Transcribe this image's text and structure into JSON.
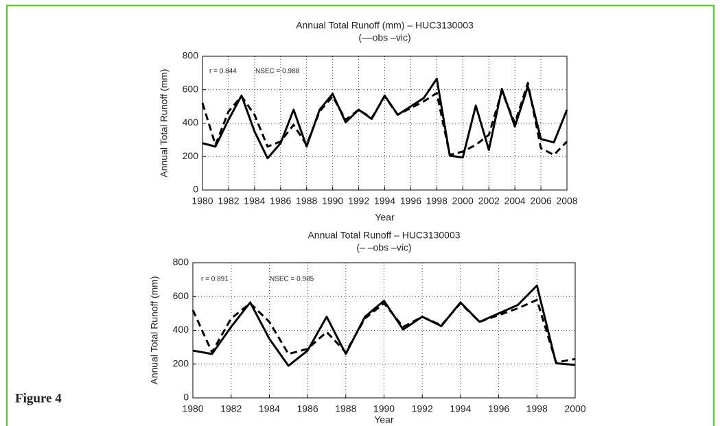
{
  "figure_label": "Figure 4",
  "chart_data": [
    {
      "type": "line",
      "title": "Annual Total Runoff (mm) – HUC3130003",
      "subtitle": "(––obs  –vic)",
      "x_label": "Year",
      "y_label": "Annual Total Runoff (mm)",
      "annotations": [
        "r = 0.844",
        "NSEC = 0.988"
      ],
      "x": [
        1980,
        1981,
        1982,
        1983,
        1984,
        1985,
        1986,
        1987,
        1988,
        1989,
        1990,
        1991,
        1992,
        1993,
        1994,
        1995,
        1996,
        1997,
        1998,
        1999,
        2000,
        2001,
        2002,
        2003,
        2004,
        2005,
        2006,
        2007,
        2008
      ],
      "series": [
        {
          "color": "#000000",
          "dash": true,
          "values": [
            520,
            270,
            470,
            560,
            450,
            260,
            290,
            390,
            270,
            470,
            560,
            420,
            480,
            430,
            560,
            450,
            490,
            530,
            580,
            210,
            230,
            270,
            330,
            590,
            400,
            640,
            250,
            210,
            290
          ]
        },
        {
          "color": "#000000",
          "dash": false,
          "values": [
            280,
            260,
            420,
            565,
            350,
            190,
            280,
            480,
            260,
            480,
            575,
            405,
            480,
            425,
            565,
            450,
            500,
            550,
            665,
            205,
            195,
            505,
            240,
            605,
            380,
            620,
            305,
            285,
            480
          ]
        }
      ],
      "xlim": [
        1980,
        2008
      ],
      "xticks": [
        1980,
        1982,
        1984,
        1986,
        1988,
        1990,
        1992,
        1994,
        1996,
        1998,
        2000,
        2002,
        2004,
        2006,
        2008
      ],
      "ylim": [
        0,
        800
      ],
      "yticks": [
        0,
        200,
        400,
        600,
        800
      ],
      "grid": true
    },
    {
      "type": "line",
      "title": "Annual Total Runoff – HUC3130003",
      "subtitle": "(– –obs  –vic)",
      "x_label": "Year",
      "y_label": "Annual Total Runoff (mm)",
      "annotations": [
        "r = 0.891",
        "NSEC = 0.985"
      ],
      "x": [
        1980,
        1981,
        1982,
        1983,
        1984,
        1985,
        1986,
        1987,
        1988,
        1989,
        1990,
        1991,
        1992,
        1993,
        1994,
        1995,
        1996,
        1997,
        1998,
        1999,
        2000
      ],
      "series": [
        {
          "color": "#000000",
          "dash": true,
          "values": [
            520,
            270,
            470,
            560,
            450,
            260,
            290,
            390,
            270,
            470,
            560,
            420,
            480,
            430,
            560,
            450,
            490,
            530,
            580,
            210,
            230
          ]
        },
        {
          "color": "#000000",
          "dash": false,
          "values": [
            280,
            260,
            420,
            565,
            350,
            190,
            280,
            480,
            260,
            480,
            575,
            405,
            480,
            425,
            565,
            450,
            500,
            550,
            665,
            205,
            195
          ]
        }
      ],
      "xlim": [
        1980,
        2000
      ],
      "xticks": [
        1980,
        1982,
        1984,
        1986,
        1988,
        1990,
        1992,
        1994,
        1996,
        1998,
        2000
      ],
      "ylim": [
        0,
        800
      ],
      "yticks": [
        0,
        200,
        400,
        600,
        800
      ],
      "grid": true
    }
  ]
}
